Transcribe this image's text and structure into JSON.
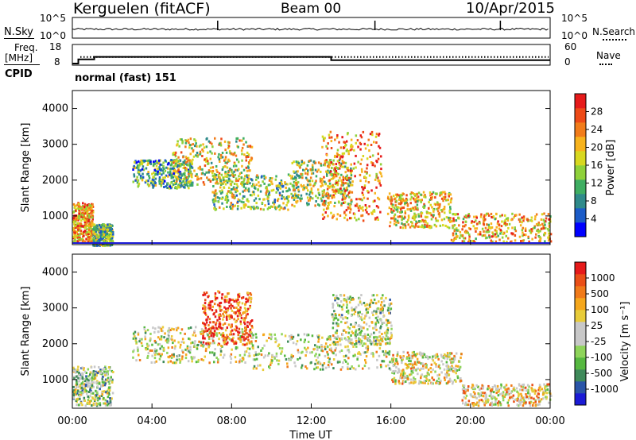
{
  "header": {
    "title": "Kerguelen (fitACF)",
    "beam": "Beam 00",
    "date": "10/Apr/2015"
  },
  "left_labels": {
    "nsky": "N.Sky",
    "freq_line1": "Freq.",
    "freq_line2": "[MHz]",
    "cpid": "CPID"
  },
  "right_labels": {
    "nsearch": "N.Search",
    "nave": "Nave"
  },
  "cpid_text": "normal (fast) 151",
  "chart_data": [
    {
      "type": "line",
      "name": "noise",
      "left_axis": {
        "ticks": [
          "10^5",
          "10^0"
        ]
      },
      "right_axis": {
        "ticks": [
          "10^5",
          "10^0"
        ]
      },
      "spikes_hours": [
        7.3,
        15.2,
        21.5
      ]
    },
    {
      "type": "line",
      "name": "frequency_nave",
      "left_axis": {
        "ticks": [
          "18",
          "8"
        ],
        "ylim": [
          8,
          18
        ]
      },
      "right_axis": {
        "ticks": [
          "60",
          "0"
        ],
        "ylim": [
          0,
          60
        ]
      },
      "freq_steps": [
        {
          "from": 0,
          "to": 0.3,
          "value": 8
        },
        {
          "from": 0.3,
          "to": 1.1,
          "value": 10.5
        },
        {
          "from": 1.1,
          "to": 13.0,
          "value": 12
        },
        {
          "from": 13.0,
          "to": 24,
          "value": 10
        }
      ],
      "nave_value": 12
    },
    {
      "type": "heatmap",
      "name": "power",
      "ylabel": "Slant Range [km]",
      "yticks": [
        1000,
        2000,
        3000,
        4000
      ],
      "ylim": [
        200,
        4500
      ],
      "xlim": [
        0,
        24
      ],
      "colorbar": {
        "label": "Power [dB]",
        "ticks": [
          "4",
          "8",
          "12",
          "16",
          "20",
          "24",
          "28"
        ],
        "colors": [
          "#0000ff",
          "#1c5cc8",
          "#2f8a8a",
          "#3fae62",
          "#8fd13a",
          "#d8d820",
          "#f7b31d",
          "#f27c1a",
          "#ee4a17",
          "#e61a1a"
        ]
      },
      "bands": [
        {
          "t0": 0.0,
          "t1": 1.0,
          "r0": 300,
          "r1": 1400,
          "level": 0.7
        },
        {
          "t0": 1.0,
          "t1": 2.0,
          "r0": 200,
          "r1": 800,
          "level": 0.4
        },
        {
          "t0": 3.0,
          "t1": 6.0,
          "r0": 1800,
          "r1": 2600,
          "level": 0.35
        },
        {
          "t0": 5.0,
          "t1": 9.0,
          "r0": 1900,
          "r1": 3200,
          "level": 0.55
        },
        {
          "t0": 7.0,
          "t1": 11.0,
          "r0": 1200,
          "r1": 2200,
          "level": 0.45
        },
        {
          "t0": 11.0,
          "t1": 14.0,
          "r0": 1300,
          "r1": 2600,
          "level": 0.5
        },
        {
          "t0": 12.5,
          "t1": 15.5,
          "r0": 900,
          "r1": 3400,
          "level": 0.75
        },
        {
          "t0": 15.8,
          "t1": 19.0,
          "r0": 700,
          "r1": 1700,
          "level": 0.6
        },
        {
          "t0": 19.0,
          "t1": 24.0,
          "r0": 300,
          "r1": 1100,
          "level": 0.65
        }
      ]
    },
    {
      "type": "heatmap",
      "name": "velocity",
      "ylabel": "Slant Range [km]",
      "xlabel": "Time UT",
      "yticks": [
        1000,
        2000,
        3000,
        4000
      ],
      "ylim": [
        200,
        4500
      ],
      "xlim": [
        0,
        24
      ],
      "xticks": [
        "00:00",
        "04:00",
        "08:00",
        "12:00",
        "16:00",
        "20:00",
        "00:00"
      ],
      "colorbar": {
        "label": "Velocity [m s⁻¹]",
        "ticks": [
          "1000",
          "500",
          "100",
          "25",
          "-25",
          "-100",
          "-500",
          "-1000"
        ],
        "colors": [
          "#1b1bd6",
          "#2a55a8",
          "#3f8a5a",
          "#56b840",
          "#8ed45a",
          "#c8c8c8",
          "#c8c8c8",
          "#e8cc3a",
          "#f5a71c",
          "#f07a1a",
          "#ea4f17",
          "#e61a1a"
        ]
      },
      "bands": [
        {
          "t0": 0.0,
          "t1": 2.0,
          "r0": 300,
          "r1": 1400,
          "level": 0.4
        },
        {
          "t0": 3.0,
          "t1": 9.0,
          "r0": 1500,
          "r1": 2500,
          "level": 0.5
        },
        {
          "t0": 6.5,
          "t1": 9.0,
          "r0": 2000,
          "r1": 3500,
          "level": 0.9
        },
        {
          "t0": 9.0,
          "t1": 16.0,
          "r0": 1300,
          "r1": 2300,
          "level": 0.5
        },
        {
          "t0": 13.0,
          "t1": 16.0,
          "r0": 2000,
          "r1": 3400,
          "level": 0.45
        },
        {
          "t0": 16.0,
          "t1": 19.5,
          "r0": 900,
          "r1": 1800,
          "level": 0.55
        },
        {
          "t0": 19.5,
          "t1": 24.0,
          "r0": 300,
          "r1": 900,
          "level": 0.6
        }
      ]
    }
  ]
}
